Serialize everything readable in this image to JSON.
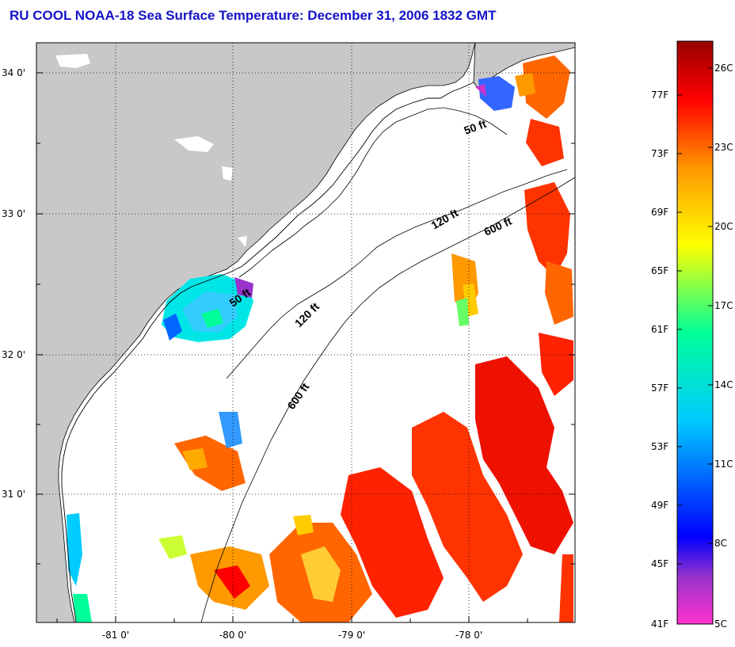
{
  "header": {
    "title": "RU COOL  NOAA-18  Sea Surface Temperature:  December 31, 2006 1832 GMT"
  },
  "map": {
    "lat_labels": [
      "34 0'",
      "33 0'",
      "32 0'",
      "31 0'"
    ],
    "lon_labels": [
      "-81 0'",
      "-80 0'",
      "-79 0'",
      "-78 0'"
    ],
    "contour_labels": {
      "c50_north": "50 ft",
      "c50_south": "50 ft",
      "c120_north": "120 ft",
      "c120_south": "120 ft",
      "c600_north": "600 ft",
      "c600_south": "600 ft"
    },
    "colors": {
      "land": "#c8c8c8",
      "ocean_no_data": "#ffffff",
      "grid": "#000000"
    }
  },
  "legend": {
    "fahrenheit_labels": [
      "77F",
      "73F",
      "69F",
      "65F",
      "61F",
      "57F",
      "53F",
      "49F",
      "45F",
      "41F"
    ],
    "celsius_labels": [
      "26C",
      "23C",
      "20C",
      "17C",
      "14C",
      "11C",
      "8C",
      "5C"
    ],
    "gradient_stops": [
      "#ff33cc",
      "#9933cc",
      "#0000ff",
      "#00ccff",
      "#00ff99",
      "#ffff00",
      "#ff9900",
      "#ff0000",
      "#990000"
    ]
  }
}
